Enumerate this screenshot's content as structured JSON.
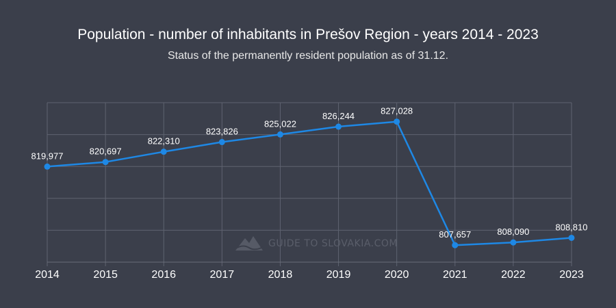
{
  "chart_data": {
    "type": "line",
    "title": "Population - number of inhabitants in Prešov Region - years 2014 - 2023",
    "subtitle": "Status of the permanently resident population as of 31.12.",
    "xlabel": "",
    "ylabel": "",
    "categories": [
      "2014",
      "2015",
      "2016",
      "2017",
      "2018",
      "2019",
      "2020",
      "2021",
      "2022",
      "2023"
    ],
    "series": [
      {
        "values": [
          819977,
          820697,
          822310,
          823826,
          825022,
          826244,
          827028,
          807657,
          808090,
          808810
        ],
        "labels": [
          "819,977",
          "820,697",
          "822,310",
          "823,826",
          "825,022",
          "826,244",
          "827,028",
          "807,657",
          "808,090",
          "808,810"
        ],
        "color": "#1e88e5"
      }
    ],
    "ylim": [
      805000,
      830000
    ],
    "grid": true,
    "legend": "none"
  },
  "watermark": {
    "text": "GUIDE TO SLOVAKIA.COM",
    "icon": "mountain-logo-icon"
  }
}
